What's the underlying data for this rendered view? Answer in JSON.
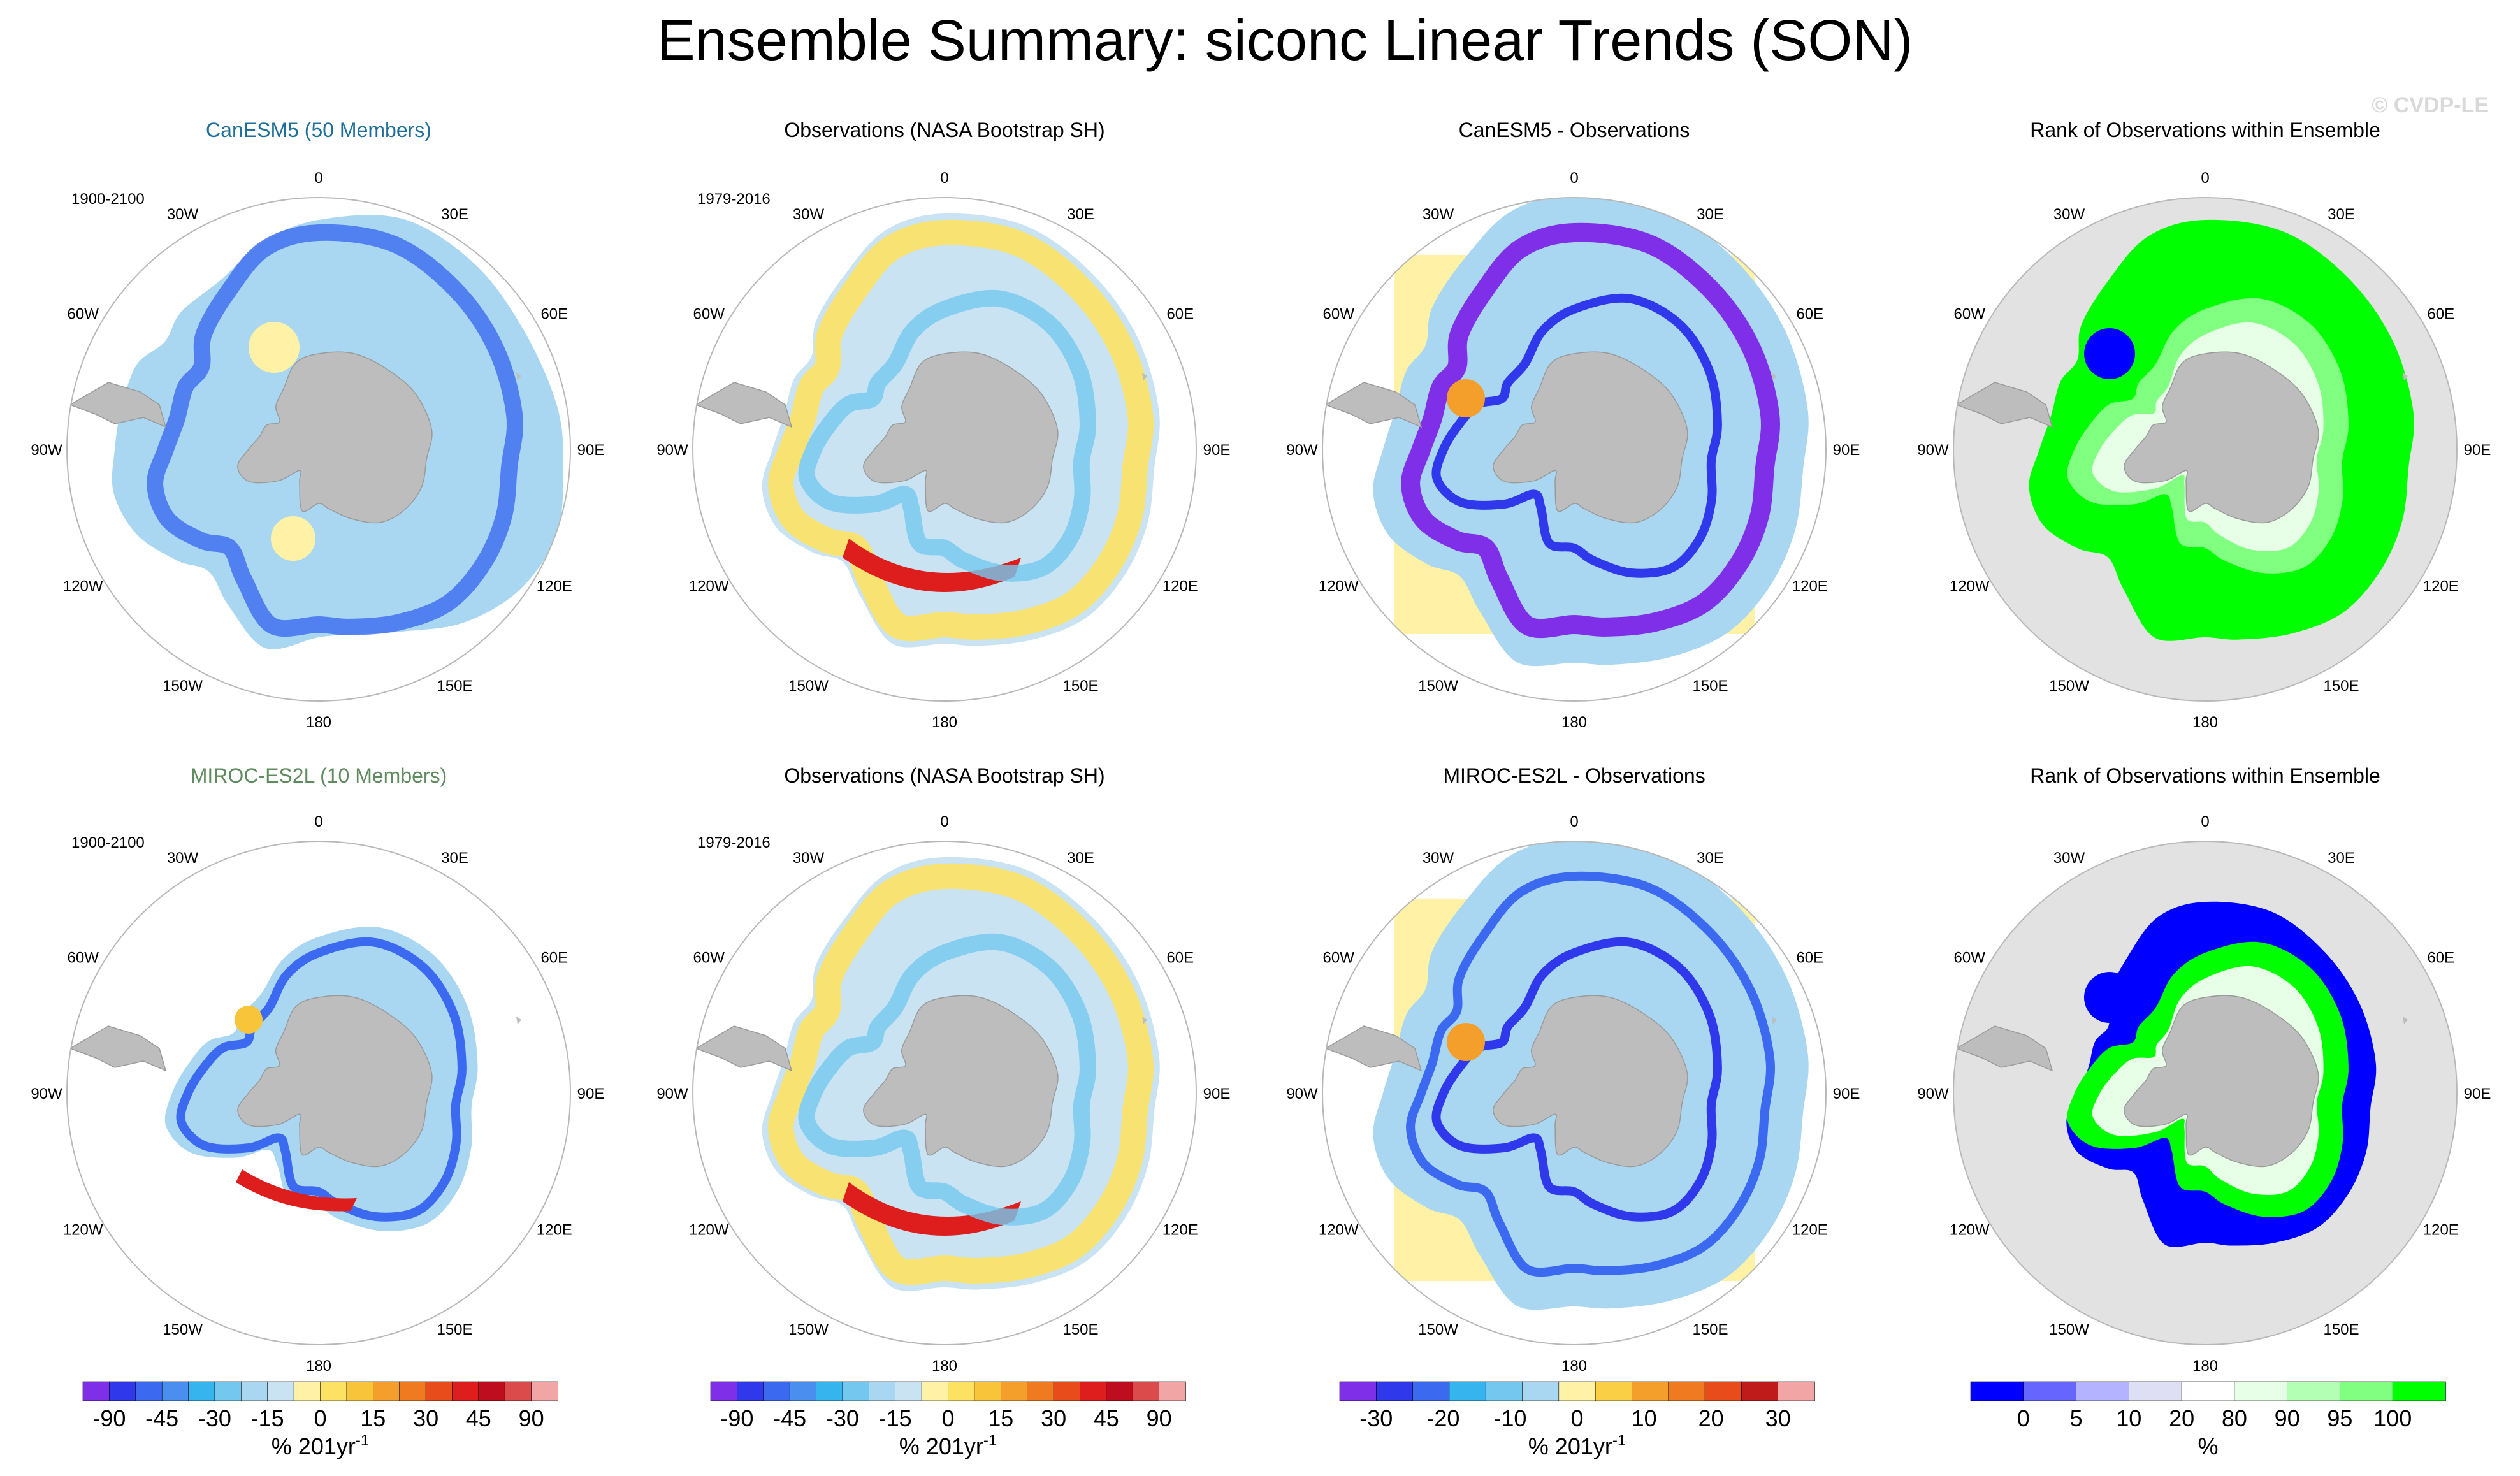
{
  "title": "Ensemble Summary: siconc Linear Trends (SON)",
  "copyright": "© CVDP-LE",
  "colors": {
    "land": "#bdbdbd",
    "polar_background": "#e2e2e2",
    "model_row1": "#1f6f99",
    "model_row2": "#5e8c5e",
    "trend_palette": [
      "#7f2fe8",
      "#2f38ea",
      "#3b6af1",
      "#4a8ef0",
      "#36b4ee",
      "#74c8ef",
      "#a9d7f1",
      "#c9e3f3",
      "#fff2a6",
      "#fde163",
      "#f8c43a",
      "#f49f2b",
      "#ef7a20",
      "#e84c1a",
      "#dd1e1d",
      "#be0d1e",
      "#db4b4b",
      "#f2a5a5"
    ],
    "diff_palette": [
      "#7f2fe8",
      "#2f38ea",
      "#3b6af1",
      "#36b4ee",
      "#74c8ef",
      "#a9d7f1",
      "#fff2a6",
      "#fbcf45",
      "#f49f2b",
      "#ef7a20",
      "#e84c1a",
      "#c01b1b",
      "#f2a5a5"
    ],
    "rank_palette": [
      "#0000ff",
      "#6666ff",
      "#b3b3ff",
      "#dedff5",
      "#ffffff",
      "#e6ffe6",
      "#b3ffb3",
      "#80ff80",
      "#00ff00"
    ]
  },
  "lon_labels": [
    "0",
    "30E",
    "60E",
    "90E",
    "120E",
    "150E",
    "180",
    "150W",
    "120W",
    "90W",
    "60W",
    "30W"
  ],
  "panels": [
    {
      "title": "CanESM5 (50 Members)",
      "period": "1900-2100",
      "kind": "model",
      "row": 0
    },
    {
      "title": "Observations (NASA Bootstrap SH)",
      "period": "1979-2016",
      "kind": "obs",
      "row": 0
    },
    {
      "title": "CanESM5 - Observations",
      "period": "",
      "kind": "diff",
      "row": 0
    },
    {
      "title": "Rank of Observations within Ensemble",
      "period": "",
      "kind": "rank",
      "row": 0
    },
    {
      "title": "MIROC-ES2L (10 Members)",
      "period": "1900-2100",
      "kind": "model",
      "row": 1
    },
    {
      "title": "Observations (NASA Bootstrap SH)",
      "period": "1979-2016",
      "kind": "obs",
      "row": 1
    },
    {
      "title": "MIROC-ES2L - Observations",
      "period": "",
      "kind": "diff",
      "row": 1
    },
    {
      "title": "Rank of Observations within Ensemble",
      "period": "",
      "kind": "rank",
      "row": 1
    }
  ],
  "colorbars": [
    {
      "name": "trend-colorbar-1",
      "label": "% 201yr",
      "label_sup": "-1",
      "ticks": [
        "-90",
        "-45",
        "-30",
        "-15",
        "0",
        "15",
        "30",
        "45",
        "90"
      ],
      "palette": "trend_palette"
    },
    {
      "name": "trend-colorbar-2",
      "label": "% 201yr",
      "label_sup": "-1",
      "ticks": [
        "-90",
        "-45",
        "-30",
        "-15",
        "0",
        "15",
        "30",
        "45",
        "90"
      ],
      "palette": "trend_palette"
    },
    {
      "name": "diff-colorbar",
      "label": "% 201yr",
      "label_sup": "-1",
      "ticks": [
        "-30",
        "-20",
        "-10",
        "0",
        "10",
        "20",
        "30"
      ],
      "palette": "diff_palette"
    },
    {
      "name": "rank-colorbar",
      "label": "%",
      "label_sup": "",
      "ticks": [
        "0",
        "5",
        "10",
        "20",
        "80",
        "90",
        "95",
        "100"
      ],
      "palette": "rank_palette"
    }
  ],
  "chart_data": {
    "type": "heatmap",
    "title": "Ensemble Summary: siconc Linear Trends (SON)",
    "variable": "siconc",
    "season": "SON",
    "projection": "south polar stereographic",
    "longitude_labels": [
      "0",
      "30E",
      "60E",
      "90E",
      "120E",
      "150E",
      "180",
      "150W",
      "120W",
      "90W",
      "60W",
      "30W"
    ],
    "trend_colorbar": {
      "units": "% 201yr-1",
      "ticks": [
        -90,
        -45,
        -30,
        -15,
        0,
        15,
        30,
        45,
        90
      ]
    },
    "diff_colorbar": {
      "units": "% 201yr-1",
      "ticks": [
        -30,
        -20,
        -10,
        0,
        10,
        20,
        30
      ]
    },
    "rank_colorbar": {
      "units": "%",
      "ticks": [
        0,
        5,
        10,
        20,
        80,
        90,
        95,
        100
      ]
    },
    "panels": [
      {
        "title": "CanESM5 (50 Members)",
        "period": "1900-2100",
        "type": "trend map"
      },
      {
        "title": "Observations (NASA Bootstrap SH)",
        "period": "1979-2016",
        "type": "trend map"
      },
      {
        "title": "CanESM5 - Observations",
        "type": "difference map"
      },
      {
        "title": "Rank of Observations within Ensemble",
        "type": "rank map"
      },
      {
        "title": "MIROC-ES2L (10 Members)",
        "period": "1900-2100",
        "type": "trend map"
      },
      {
        "title": "Observations (NASA Bootstrap SH)",
        "period": "1979-2016",
        "type": "trend map"
      },
      {
        "title": "MIROC-ES2L - Observations",
        "type": "difference map"
      },
      {
        "title": "Rank of Observations within Ensemble",
        "type": "rank map"
      }
    ]
  }
}
